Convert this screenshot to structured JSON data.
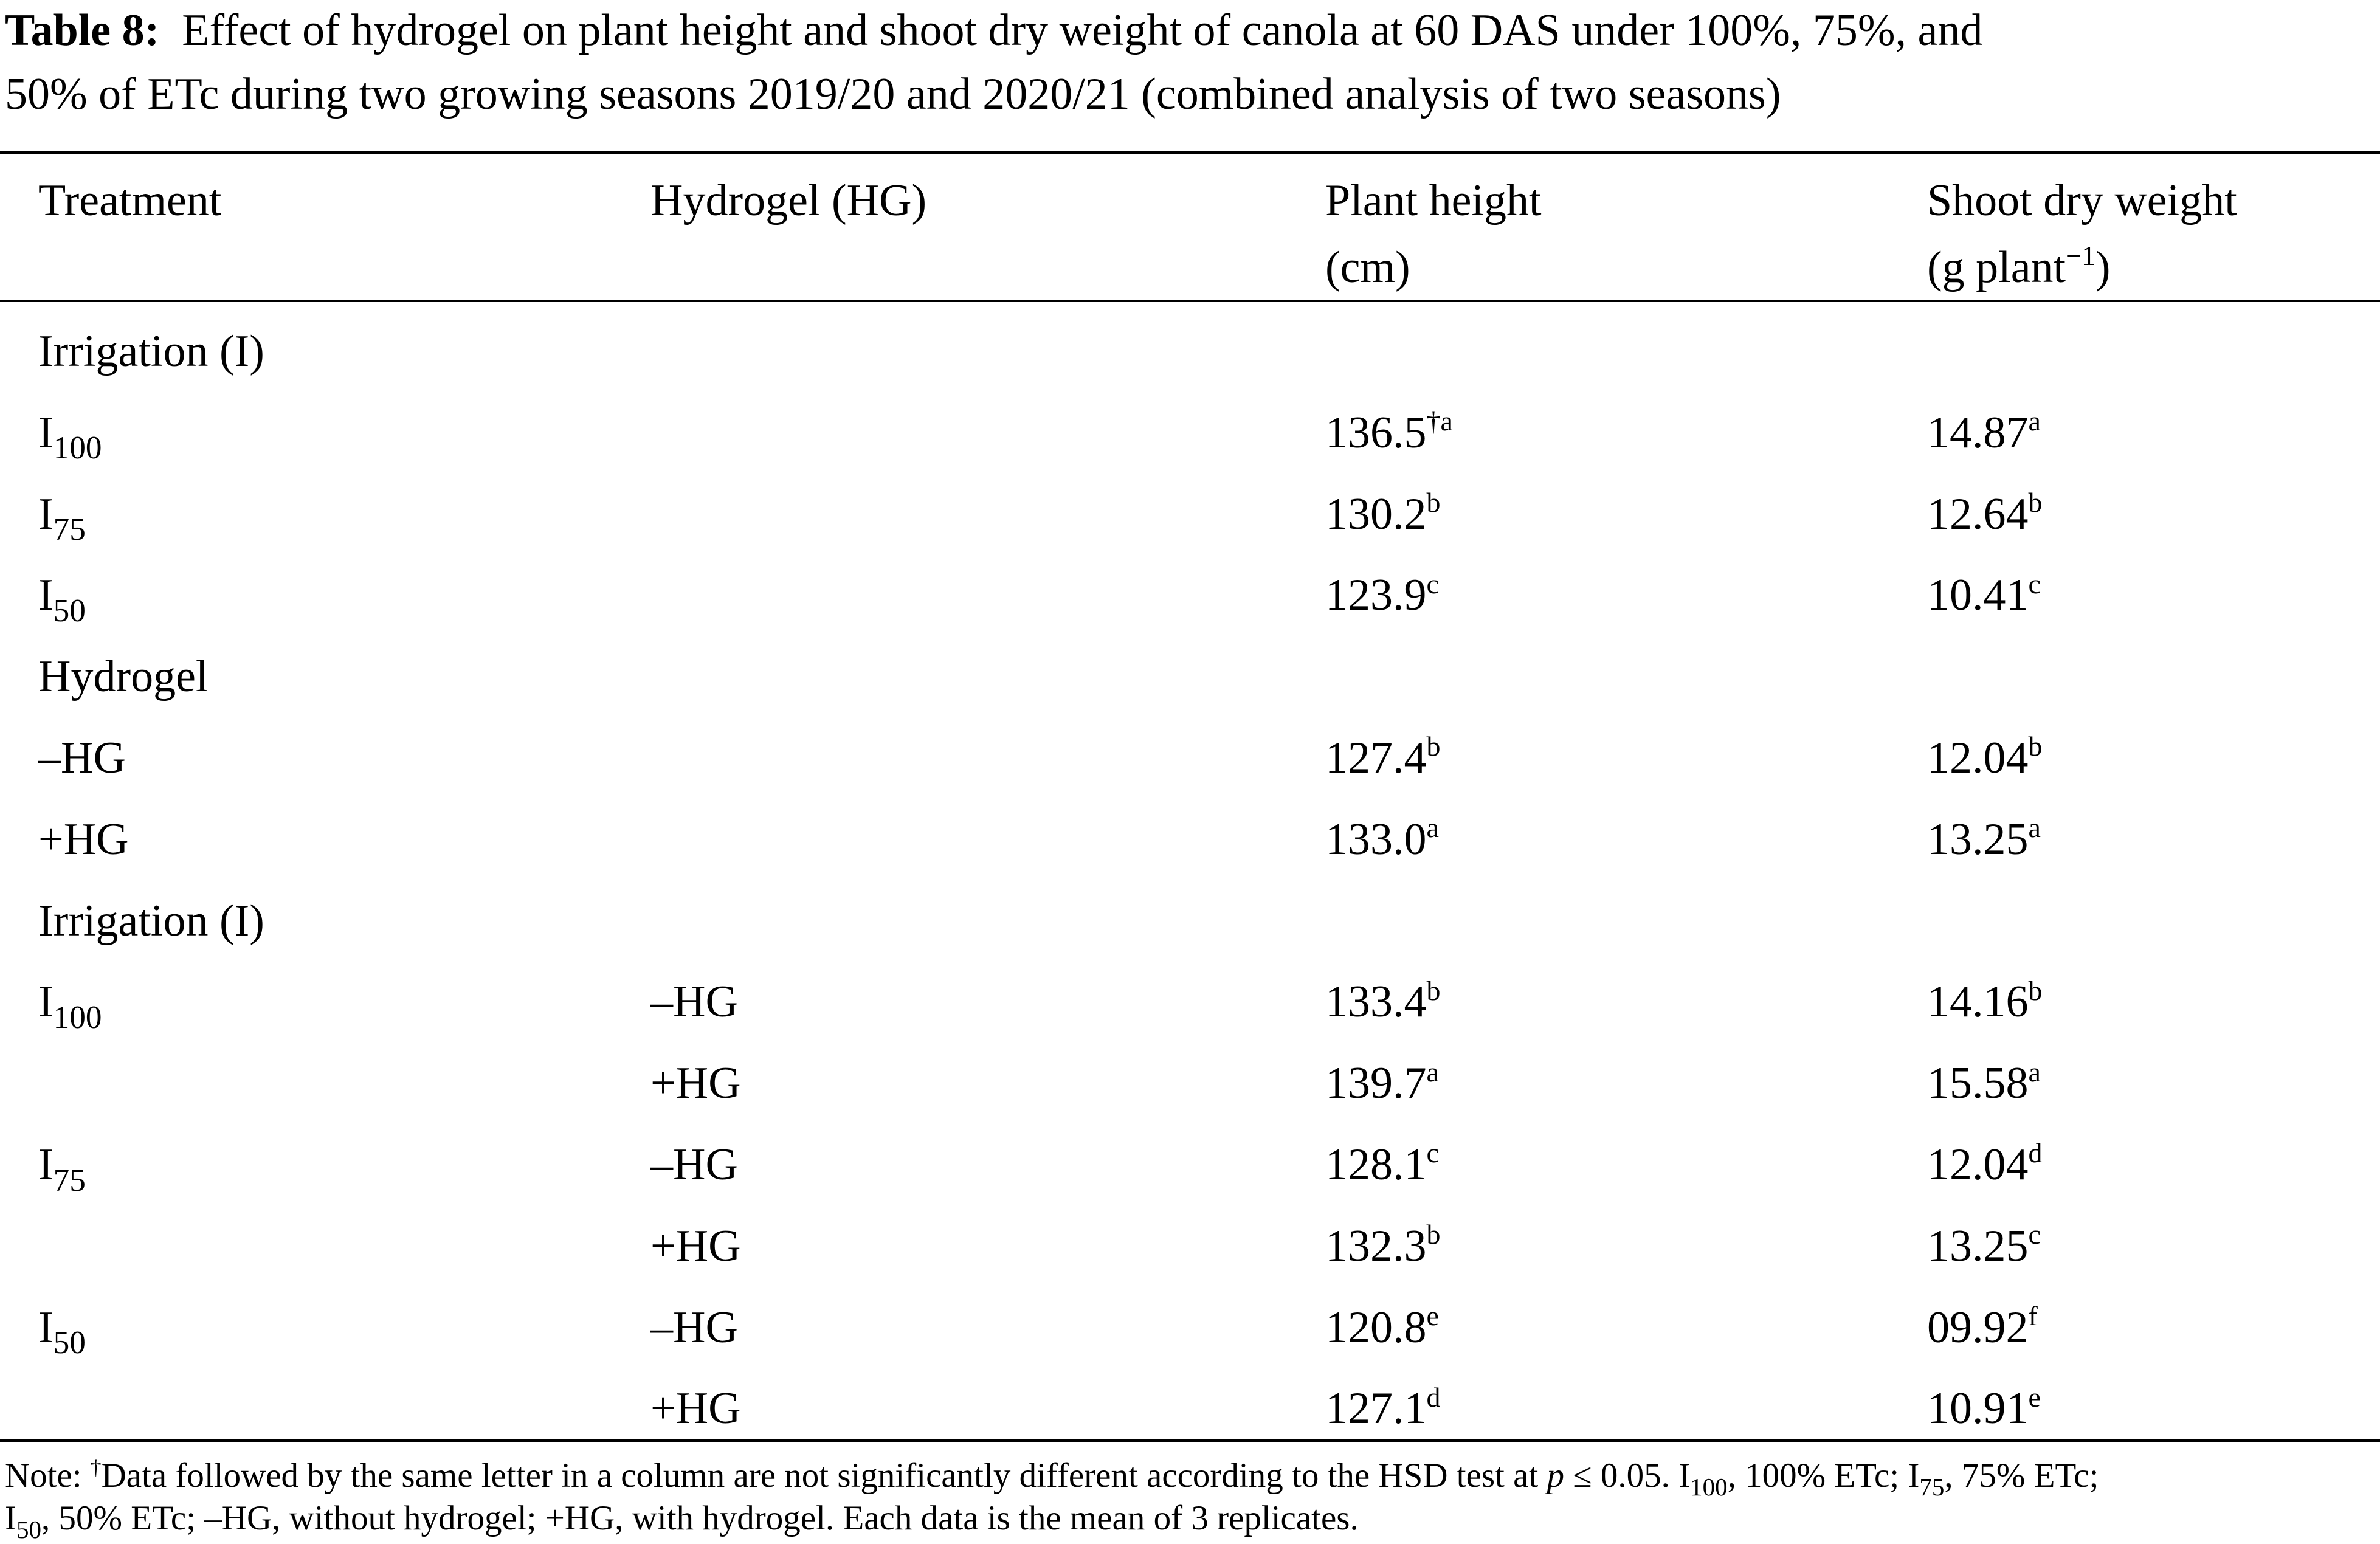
{
  "title": {
    "label": "Table 8:",
    "lines": [
      "Effect of hydrogel on plant height and shoot dry weight of canola at 60 DAS under 100%, 75%, and",
      "50% of ETc during two growing seasons 2019/20 and 2020/21 (combined analysis of two seasons)"
    ]
  },
  "table": {
    "headers": [
      [
        "Treatment"
      ],
      [
        "Hydrogel (HG)"
      ],
      [
        "Plant height",
        "(cm)"
      ],
      [
        "Shoot dry weight",
        {
          "value": "(g plant",
          "sup": "−1",
          "after": ")"
        }
      ]
    ],
    "rows": [
      {
        "treatment": "Irrigation (I)"
      },
      {
        "treatment": {
          "value": "I",
          "sub": "100"
        },
        "height": {
          "value": "136.5",
          "sup": "†a"
        },
        "weight": {
          "value": "14.87",
          "sup": "a"
        }
      },
      {
        "treatment": {
          "value": "I",
          "sub": "75"
        },
        "height": {
          "value": "130.2",
          "sup": "b"
        },
        "weight": {
          "value": "12.64",
          "sup": "b"
        }
      },
      {
        "treatment": {
          "value": "I",
          "sub": "50"
        },
        "height": {
          "value": "123.9",
          "sup": "c"
        },
        "weight": {
          "value": "10.41",
          "sup": "c"
        }
      },
      {
        "treatment": "Hydrogel"
      },
      {
        "treatment": "–HG",
        "height": {
          "value": "127.4",
          "sup": "b"
        },
        "weight": {
          "value": "12.04",
          "sup": "b"
        }
      },
      {
        "treatment": "+HG",
        "height": {
          "value": "133.0",
          "sup": "a"
        },
        "weight": {
          "value": "13.25",
          "sup": "a"
        }
      },
      {
        "treatment": "Irrigation (I)"
      },
      {
        "treatment": {
          "value": "I",
          "sub": "100"
        },
        "hydrogel": "–HG",
        "height": {
          "value": "133.4",
          "sup": "b"
        },
        "weight": {
          "value": "14.16",
          "sup": "b"
        }
      },
      {
        "hydrogel": "+HG",
        "height": {
          "value": "139.7",
          "sup": "a"
        },
        "weight": {
          "value": "15.58",
          "sup": "a"
        }
      },
      {
        "treatment": {
          "value": "I",
          "sub": "75"
        },
        "hydrogel": "–HG",
        "height": {
          "value": "128.1",
          "sup": "c"
        },
        "weight": {
          "value": "12.04",
          "sup": "d"
        }
      },
      {
        "hydrogel": "+HG",
        "height": {
          "value": "132.3",
          "sup": "b"
        },
        "weight": {
          "value": "13.25",
          "sup": "c"
        }
      },
      {
        "treatment": {
          "value": "I",
          "sub": "50"
        },
        "hydrogel": "–HG",
        "height": {
          "value": "120.8",
          "sup": "e"
        },
        "weight": {
          "value": "09.92",
          "sup": "f"
        }
      },
      {
        "hydrogel": "+HG",
        "height": {
          "value": "127.1",
          "sup": "d"
        },
        "weight": {
          "value": "10.91",
          "sup": "e"
        }
      }
    ]
  },
  "note": [
    [
      {
        "value": "Note: "
      },
      {
        "sup": "†"
      },
      {
        "value": "Data followed by the same letter in a column are not significantly different according to the HSD test at "
      },
      {
        "italic": "p"
      },
      {
        "value": " ≤ 0.05. I"
      },
      {
        "sub": "100"
      },
      {
        "value": ", 100% ETc; I"
      },
      {
        "sub": "75"
      },
      {
        "value": ", 75% ETc;"
      }
    ],
    [
      {
        "value": "I"
      },
      {
        "sub": "50"
      },
      {
        "value": ", 50% ETc; –HG, without hydrogel; +HG, with hydrogel. Each data is the mean of 3 replicates."
      }
    ]
  ]
}
